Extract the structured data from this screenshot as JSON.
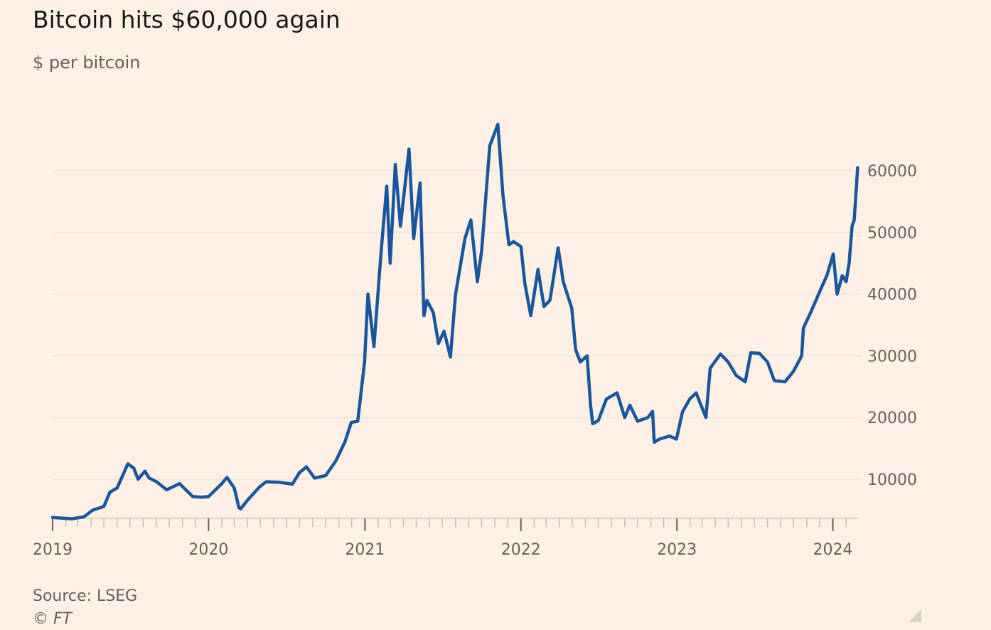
{
  "title": "Bitcoin hits $60,000 again",
  "subtitle": "$ per bitcoin",
  "source": "Source: LSEG",
  "credit": "© FT",
  "colors": {
    "background": "#fdf1e6",
    "line": "#1a56a0",
    "gridline": "#ece2d8",
    "axis": "#66605c",
    "text": "#33302e"
  },
  "chart_data": {
    "type": "line",
    "title": "Bitcoin hits $60,000 again",
    "ylabel": "$ per bitcoin",
    "xlabel": "",
    "xlim": [
      "2019-01-01",
      "2024-02-29"
    ],
    "ylim": [
      3700,
      70000
    ],
    "y_ticks": [
      10000,
      20000,
      30000,
      40000,
      50000,
      60000
    ],
    "y_tick_labels": [
      "10000",
      "20000",
      "30000",
      "40000",
      "50000",
      "60000"
    ],
    "y_axis_side": "right",
    "x_tick_labels": [
      "2019",
      "2020",
      "2021",
      "2022",
      "2023",
      "2024"
    ],
    "x_ticks": [
      "2019-01-01",
      "2020-01-01",
      "2021-01-01",
      "2022-01-01",
      "2023-01-01",
      "2024-01-01"
    ],
    "grid": true,
    "legend": "none",
    "series": [
      {
        "x": [
          "2019-01-01",
          "2019-02-15",
          "2019-03-15",
          "2019-04-05",
          "2019-05-01",
          "2019-05-15",
          "2019-06-01",
          "2019-06-26",
          "2019-07-10",
          "2019-07-20",
          "2019-08-05",
          "2019-08-15",
          "2019-09-01",
          "2019-09-25",
          "2019-10-25",
          "2019-11-25",
          "2019-12-15",
          "2020-01-01",
          "2020-02-01",
          "2020-02-13",
          "2020-03-01",
          "2020-03-12",
          "2020-03-16",
          "2020-04-01",
          "2020-04-30",
          "2020-05-15",
          "2020-06-15",
          "2020-07-15",
          "2020-08-01",
          "2020-08-17",
          "2020-09-05",
          "2020-10-01",
          "2020-10-25",
          "2020-11-15",
          "2020-11-30",
          "2020-12-15",
          "2020-12-31",
          "2021-01-08",
          "2021-01-22",
          "2021-02-08",
          "2021-02-21",
          "2021-03-01",
          "2021-03-13",
          "2021-03-25",
          "2021-04-14",
          "2021-04-25",
          "2021-05-10",
          "2021-05-19",
          "2021-05-26",
          "2021-06-10",
          "2021-06-22",
          "2021-07-05",
          "2021-07-20",
          "2021-08-01",
          "2021-08-23",
          "2021-09-06",
          "2021-09-21",
          "2021-10-01",
          "2021-10-20",
          "2021-11-08",
          "2021-11-20",
          "2021-12-04",
          "2021-12-15",
          "2022-01-01",
          "2022-01-10",
          "2022-01-24",
          "2022-02-10",
          "2022-02-24",
          "2022-03-10",
          "2022-03-29",
          "2022-04-10",
          "2022-04-30",
          "2022-05-09",
          "2022-05-20",
          "2022-06-05",
          "2022-06-13",
          "2022-06-18",
          "2022-07-01",
          "2022-07-20",
          "2022-08-14",
          "2022-09-01",
          "2022-09-13",
          "2022-10-01",
          "2022-10-25",
          "2022-11-05",
          "2022-11-09",
          "2022-11-21",
          "2022-12-15",
          "2022-12-31",
          "2023-01-14",
          "2023-01-31",
          "2023-02-15",
          "2023-03-10",
          "2023-03-20",
          "2023-04-13",
          "2023-05-01",
          "2023-05-20",
          "2023-06-10",
          "2023-06-23",
          "2023-07-13",
          "2023-08-01",
          "2023-08-17",
          "2023-09-11",
          "2023-10-01",
          "2023-10-20",
          "2023-10-24",
          "2023-11-10",
          "2023-12-05",
          "2023-12-18",
          "2024-01-02",
          "2024-01-11",
          "2024-01-23",
          "2024-02-01",
          "2024-02-08",
          "2024-02-15",
          "2024-02-20",
          "2024-02-28"
        ],
        "values": [
          3800,
          3600,
          3900,
          5000,
          5600,
          7900,
          8600,
          12500,
          11800,
          10000,
          11300,
          10200,
          9600,
          8300,
          9300,
          7200,
          7100,
          7200,
          9300,
          10300,
          8600,
          5400,
          5200,
          6600,
          8800,
          9600,
          9500,
          9200,
          11100,
          12000,
          10200,
          10600,
          13000,
          16000,
          19200,
          19400,
          29000,
          40000,
          31500,
          47000,
          57500,
          45000,
          61000,
          51000,
          63500,
          49000,
          58000,
          36500,
          39000,
          37000,
          32000,
          34000,
          29800,
          40000,
          49000,
          52000,
          42000,
          47000,
          64000,
          67500,
          56000,
          48000,
          48500,
          47700,
          41800,
          36500,
          44000,
          38000,
          39000,
          47500,
          42000,
          37700,
          31000,
          29000,
          30000,
          22000,
          19000,
          19500,
          23000,
          24000,
          20000,
          22000,
          19400,
          20000,
          21000,
          16000,
          16500,
          17000,
          16500,
          20900,
          23000,
          24000,
          20000,
          28000,
          30300,
          29000,
          26800,
          25800,
          30500,
          30400,
          29000,
          26000,
          25800,
          27500,
          30000,
          34500,
          37000,
          41000,
          43000,
          46500,
          40000,
          43000,
          42000,
          45000,
          51000,
          52000,
          60500
        ]
      }
    ]
  }
}
